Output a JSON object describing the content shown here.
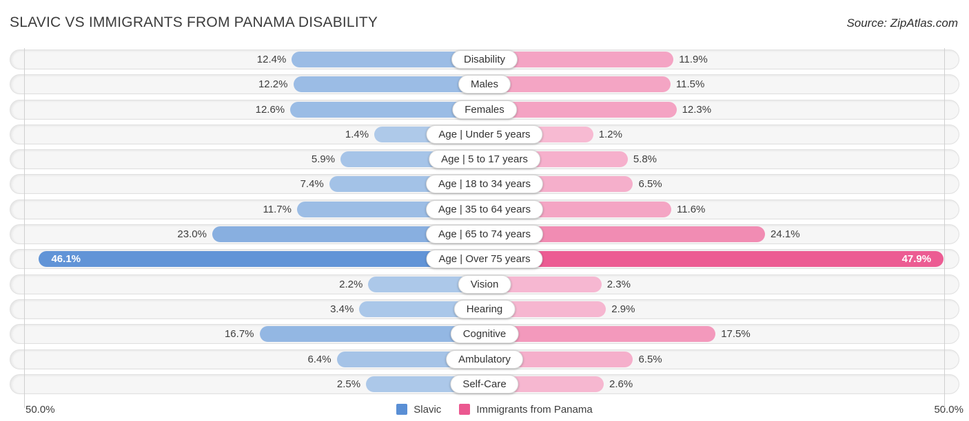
{
  "header": {
    "title": "SLAVIC VS IMMIGRANTS FROM PANAMA DISABILITY",
    "source": "Source: ZipAtlas.com"
  },
  "axis": {
    "left_label": "50.0%",
    "right_label": "50.0%"
  },
  "legend": {
    "items": [
      {
        "label": "Slavic",
        "color": "#5a8fd5"
      },
      {
        "label": "Immigrants from Panama",
        "color": "#eb5890"
      }
    ]
  },
  "colors": {
    "track_bg": "#f6f6f6",
    "track_border": "#e0e0e0",
    "gridline": "#cfcfcf",
    "value_text": "#3d3d3d",
    "inside_value_text": "#ffffff"
  },
  "chart_data": {
    "type": "bar",
    "variant": "butterfly",
    "title": "SLAVIC VS IMMIGRANTS FROM PANAMA DISABILITY",
    "categories": [
      "Disability",
      "Males",
      "Females",
      "Age | Under 5 years",
      "Age | 5 to 17 years",
      "Age | 18 to 34 years",
      "Age | 35 to 64 years",
      "Age | 65 to 74 years",
      "Age | Over 75 years",
      "Vision",
      "Hearing",
      "Cognitive",
      "Ambulatory",
      "Self-Care"
    ],
    "series": [
      {
        "name": "Slavic",
        "side": "left",
        "color_scale": [
          "#b0cbea",
          "#5a8fd5"
        ],
        "values": [
          12.4,
          12.2,
          12.6,
          1.4,
          5.9,
          7.4,
          11.7,
          23.0,
          46.1,
          2.2,
          3.4,
          16.7,
          6.4,
          2.5
        ]
      },
      {
        "name": "Immigrants from Panama",
        "side": "right",
        "color_scale": [
          "#f7bcd4",
          "#eb5890"
        ],
        "values": [
          11.9,
          11.5,
          12.3,
          1.2,
          5.8,
          6.5,
          11.6,
          24.1,
          47.9,
          2.3,
          2.9,
          17.5,
          6.5,
          2.6
        ]
      }
    ],
    "axis_max": 50,
    "axis_tick_labels": [
      "50.0%",
      "50.0%"
    ],
    "value_label_format": "{value}%",
    "legend_position": "bottom",
    "inside_label_threshold": 40
  }
}
